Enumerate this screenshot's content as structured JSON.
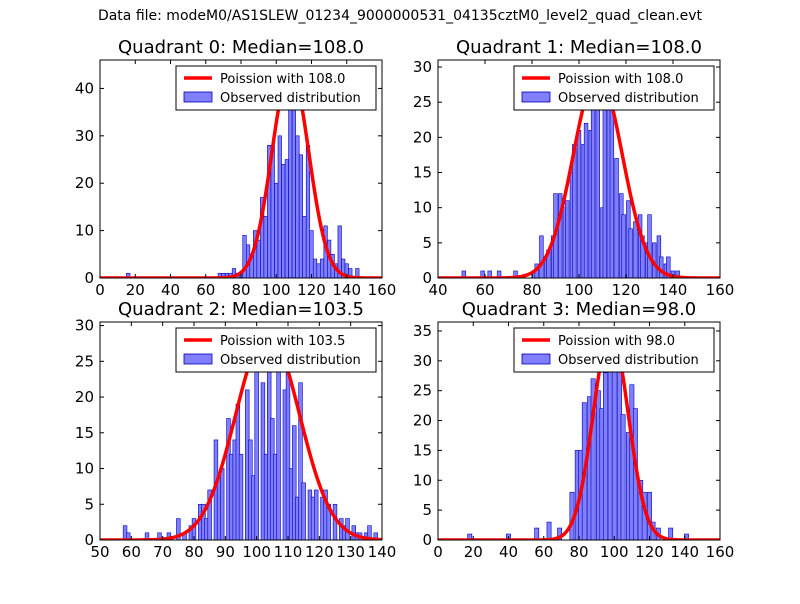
{
  "suptitle": "Data file: modeM0/AS1SLEW_01234_9000000531_04135cztM0_level2_quad_clean.evt",
  "colors": {
    "bar_fill": "#7f7fff",
    "bar_edge": "#0000bf",
    "curve": "#ff0000",
    "axes": "#000000"
  },
  "chart_data": [
    {
      "type": "bar",
      "title": "Quadrant 0: Median=108.0",
      "xlim": [
        0,
        160
      ],
      "ylim": [
        0,
        46
      ],
      "xticks": [
        0,
        20,
        40,
        60,
        80,
        100,
        120,
        140,
        160
      ],
      "yticks": [
        0,
        10,
        20,
        30,
        40
      ],
      "legend": {
        "placement": "top-right",
        "curve_label": "Poission with 108.0",
        "bar_label": "Observed distribution"
      },
      "poisson_mean": 108.0,
      "poisson_peak": 44,
      "bin_width": 2.0,
      "bars": [
        {
          "x": 16,
          "v": 1
        },
        {
          "x": 68,
          "v": 1
        },
        {
          "x": 70,
          "v": 1
        },
        {
          "x": 72,
          "v": 1
        },
        {
          "x": 74,
          "v": 1
        },
        {
          "x": 76,
          "v": 2
        },
        {
          "x": 78,
          "v": 1
        },
        {
          "x": 80,
          "v": 1
        },
        {
          "x": 82,
          "v": 9
        },
        {
          "x": 84,
          "v": 7
        },
        {
          "x": 86,
          "v": 5
        },
        {
          "x": 88,
          "v": 10
        },
        {
          "x": 90,
          "v": 8
        },
        {
          "x": 92,
          "v": 17
        },
        {
          "x": 94,
          "v": 13
        },
        {
          "x": 96,
          "v": 28
        },
        {
          "x": 98,
          "v": 28
        },
        {
          "x": 100,
          "v": 20
        },
        {
          "x": 102,
          "v": 30
        },
        {
          "x": 104,
          "v": 24
        },
        {
          "x": 106,
          "v": 25
        },
        {
          "x": 108,
          "v": 37
        },
        {
          "x": 110,
          "v": 40
        },
        {
          "x": 112,
          "v": 30
        },
        {
          "x": 114,
          "v": 26
        },
        {
          "x": 116,
          "v": 13
        },
        {
          "x": 118,
          "v": 28
        },
        {
          "x": 120,
          "v": 10
        },
        {
          "x": 122,
          "v": 4
        },
        {
          "x": 124,
          "v": 3
        },
        {
          "x": 126,
          "v": 4
        },
        {
          "x": 128,
          "v": 11
        },
        {
          "x": 130,
          "v": 8
        },
        {
          "x": 132,
          "v": 5
        },
        {
          "x": 134,
          "v": 3
        },
        {
          "x": 136,
          "v": 11
        },
        {
          "x": 138,
          "v": 4
        },
        {
          "x": 140,
          "v": 3
        },
        {
          "x": 142,
          "v": 2
        },
        {
          "x": 146,
          "v": 2
        }
      ]
    },
    {
      "type": "bar",
      "title": "Quadrant 1: Median=108.0",
      "xlim": [
        40,
        160
      ],
      "ylim": [
        0,
        31
      ],
      "xticks": [
        40,
        60,
        80,
        100,
        120,
        140,
        160
      ],
      "yticks": [
        0,
        5,
        10,
        15,
        20,
        25,
        30
      ],
      "legend": {
        "placement": "top-right",
        "curve_label": "Poission with 108.0",
        "bar_label": "Observed distribution"
      },
      "poisson_mean": 108.0,
      "poisson_peak": 29,
      "bin_width": 1.6,
      "bars": [
        {
          "x": 51,
          "v": 1
        },
        {
          "x": 59,
          "v": 1
        },
        {
          "x": 62,
          "v": 1
        },
        {
          "x": 66,
          "v": 1
        },
        {
          "x": 73,
          "v": 1
        },
        {
          "x": 81,
          "v": 1
        },
        {
          "x": 82,
          "v": 2
        },
        {
          "x": 84,
          "v": 6
        },
        {
          "x": 86,
          "v": 3
        },
        {
          "x": 87,
          "v": 4
        },
        {
          "x": 89,
          "v": 6
        },
        {
          "x": 90,
          "v": 12
        },
        {
          "x": 92,
          "v": 12
        },
        {
          "x": 94,
          "v": 10
        },
        {
          "x": 95,
          "v": 11
        },
        {
          "x": 97,
          "v": 15
        },
        {
          "x": 98,
          "v": 19
        },
        {
          "x": 100,
          "v": 21
        },
        {
          "x": 102,
          "v": 19
        },
        {
          "x": 103,
          "v": 22
        },
        {
          "x": 105,
          "v": 21
        },
        {
          "x": 106,
          "v": 24
        },
        {
          "x": 108,
          "v": 27
        },
        {
          "x": 110,
          "v": 10
        },
        {
          "x": 111,
          "v": 26
        },
        {
          "x": 113,
          "v": 25
        },
        {
          "x": 114,
          "v": 24
        },
        {
          "x": 116,
          "v": 17
        },
        {
          "x": 118,
          "v": 12
        },
        {
          "x": 119,
          "v": 9
        },
        {
          "x": 121,
          "v": 11
        },
        {
          "x": 122,
          "v": 7
        },
        {
          "x": 124,
          "v": 8
        },
        {
          "x": 126,
          "v": 9
        },
        {
          "x": 127,
          "v": 6
        },
        {
          "x": 129,
          "v": 5
        },
        {
          "x": 130,
          "v": 9
        },
        {
          "x": 132,
          "v": 5
        },
        {
          "x": 134,
          "v": 6
        },
        {
          "x": 135,
          "v": 3
        },
        {
          "x": 137,
          "v": 2
        },
        {
          "x": 138,
          "v": 3
        },
        {
          "x": 140,
          "v": 1
        },
        {
          "x": 142,
          "v": 1
        }
      ]
    },
    {
      "type": "bar",
      "title": "Quadrant 2: Median=103.5",
      "xlim": [
        50,
        140
      ],
      "ylim": [
        0,
        30.5
      ],
      "xticks": [
        50,
        60,
        70,
        80,
        90,
        100,
        110,
        120,
        130,
        140
      ],
      "yticks": [
        0,
        5,
        10,
        15,
        20,
        25,
        30
      ],
      "legend": {
        "placement": "top-right",
        "curve_label": "Poission with 103.5",
        "bar_label": "Observed distribution"
      },
      "poisson_mean": 103.5,
      "poisson_peak": 29,
      "bin_width": 1.2,
      "bars": [
        {
          "x": 58,
          "v": 2
        },
        {
          "x": 59,
          "v": 1
        },
        {
          "x": 65,
          "v": 1
        },
        {
          "x": 69,
          "v": 1
        },
        {
          "x": 72,
          "v": 1
        },
        {
          "x": 75,
          "v": 3
        },
        {
          "x": 77,
          "v": 1
        },
        {
          "x": 79,
          "v": 2
        },
        {
          "x": 80,
          "v": 3
        },
        {
          "x": 82,
          "v": 5
        },
        {
          "x": 83,
          "v": 5
        },
        {
          "x": 84,
          "v": 3
        },
        {
          "x": 85,
          "v": 7
        },
        {
          "x": 87,
          "v": 14
        },
        {
          "x": 88,
          "v": 9
        },
        {
          "x": 89,
          "v": 10
        },
        {
          "x": 91,
          "v": 17
        },
        {
          "x": 92,
          "v": 12
        },
        {
          "x": 93,
          "v": 14
        },
        {
          "x": 94,
          "v": 19
        },
        {
          "x": 95,
          "v": 12
        },
        {
          "x": 97,
          "v": 21
        },
        {
          "x": 98,
          "v": 14
        },
        {
          "x": 99,
          "v": 9
        },
        {
          "x": 100,
          "v": 27
        },
        {
          "x": 102,
          "v": 22
        },
        {
          "x": 103,
          "v": 12
        },
        {
          "x": 104,
          "v": 28
        },
        {
          "x": 105,
          "v": 17
        },
        {
          "x": 106,
          "v": 12
        },
        {
          "x": 107,
          "v": 25
        },
        {
          "x": 109,
          "v": 21
        },
        {
          "x": 110,
          "v": 24
        },
        {
          "x": 111,
          "v": 10
        },
        {
          "x": 112,
          "v": 16
        },
        {
          "x": 113,
          "v": 6
        },
        {
          "x": 114,
          "v": 22
        },
        {
          "x": 115,
          "v": 8
        },
        {
          "x": 117,
          "v": 7
        },
        {
          "x": 118,
          "v": 6
        },
        {
          "x": 119,
          "v": 7
        },
        {
          "x": 121,
          "v": 6
        },
        {
          "x": 122,
          "v": 7
        },
        {
          "x": 123,
          "v": 5
        },
        {
          "x": 125,
          "v": 5
        },
        {
          "x": 127,
          "v": 3
        },
        {
          "x": 128,
          "v": 2
        },
        {
          "x": 129,
          "v": 3
        },
        {
          "x": 131,
          "v": 2
        },
        {
          "x": 132,
          "v": 1
        },
        {
          "x": 133,
          "v": 1
        },
        {
          "x": 135,
          "v": 1
        },
        {
          "x": 136,
          "v": 2
        },
        {
          "x": 138,
          "v": 1
        }
      ]
    },
    {
      "type": "bar",
      "title": "Quadrant 3: Median=98.0",
      "xlim": [
        0,
        160
      ],
      "ylim": [
        0,
        36.5
      ],
      "xticks": [
        0,
        20,
        40,
        60,
        80,
        100,
        120,
        140,
        160
      ],
      "yticks": [
        0,
        5,
        10,
        15,
        20,
        25,
        30,
        35
      ],
      "legend": {
        "placement": "top-right",
        "curve_label": "Poission with 98.0",
        "bar_label": "Observed distribution"
      },
      "poisson_mean": 98.0,
      "poisson_peak": 35,
      "bin_width": 2.4,
      "bars": [
        {
          "x": 18,
          "v": 1
        },
        {
          "x": 40,
          "v": 1
        },
        {
          "x": 56,
          "v": 2
        },
        {
          "x": 63,
          "v": 3
        },
        {
          "x": 69,
          "v": 2
        },
        {
          "x": 76,
          "v": 8
        },
        {
          "x": 79,
          "v": 15
        },
        {
          "x": 81,
          "v": 15
        },
        {
          "x": 83,
          "v": 23
        },
        {
          "x": 86,
          "v": 24
        },
        {
          "x": 88,
          "v": 27
        },
        {
          "x": 91,
          "v": 25
        },
        {
          "x": 93,
          "v": 22
        },
        {
          "x": 95,
          "v": 28
        },
        {
          "x": 98,
          "v": 30
        },
        {
          "x": 100,
          "v": 32
        },
        {
          "x": 103,
          "v": 33
        },
        {
          "x": 105,
          "v": 21
        },
        {
          "x": 108,
          "v": 18
        },
        {
          "x": 110,
          "v": 26
        },
        {
          "x": 112,
          "v": 22
        },
        {
          "x": 115,
          "v": 10
        },
        {
          "x": 117,
          "v": 8
        },
        {
          "x": 120,
          "v": 8
        },
        {
          "x": 122,
          "v": 3
        },
        {
          "x": 125,
          "v": 2
        },
        {
          "x": 132,
          "v": 2
        },
        {
          "x": 141,
          "v": 1
        }
      ]
    }
  ]
}
